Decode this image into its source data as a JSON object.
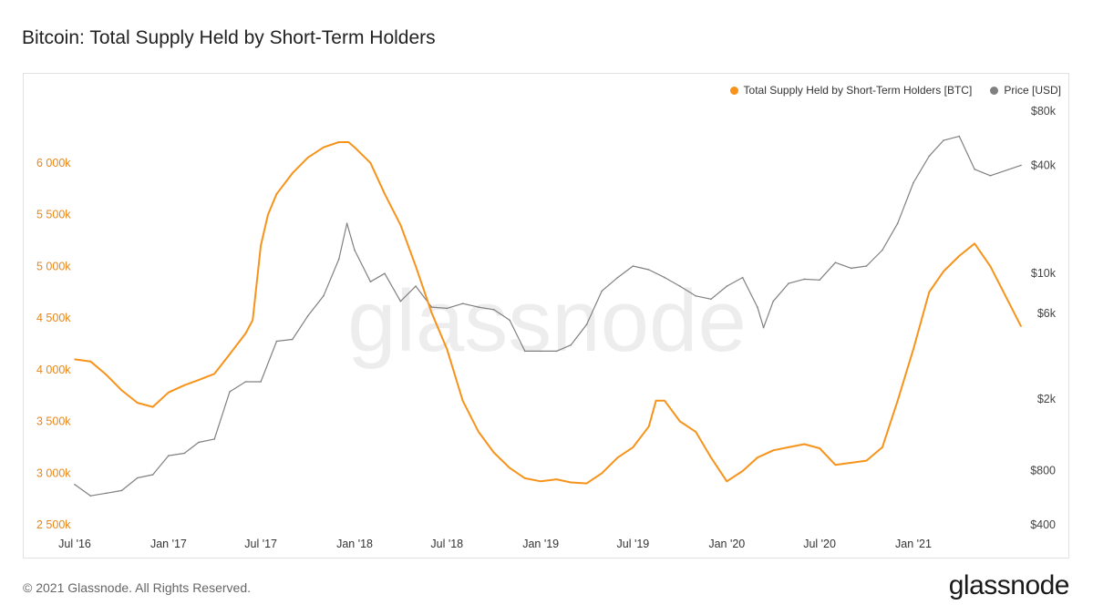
{
  "title": "Bitcoin: Total Supply Held by Short-Term Holders",
  "footer": "© 2021 Glassnode. All Rights Reserved.",
  "brand": "glassnode",
  "watermark": "glassnode",
  "colors": {
    "supply": "#f7931a",
    "price": "#808080",
    "axis_left": "#e8861a",
    "axis_right": "#444444"
  },
  "legend": [
    {
      "label": "Total Supply Held by Short-Term Holders [BTC]",
      "color": "#f7931a"
    },
    {
      "label": "Price [USD]",
      "color": "#808080"
    }
  ],
  "chart_data": {
    "type": "line",
    "title": "Bitcoin: Total Supply Held by Short-Term Holders",
    "xlim": [
      "2016-07-01",
      "2021-07-31"
    ],
    "x_ticks": [
      "Jul '16",
      "Jan '17",
      "Jul '17",
      "Jan '18",
      "Jul '18",
      "Jan '19",
      "Jul '19",
      "Jan '20",
      "Jul '20",
      "Jan '21"
    ],
    "y_left": {
      "ylim": [
        2500000,
        6500000
      ],
      "ticks": [
        2500000,
        3000000,
        3500000,
        4000000,
        4500000,
        5000000,
        5500000,
        6000000
      ],
      "tick_labels": [
        "2 500k",
        "3 000k",
        "3 500k",
        "4 000k",
        "4 500k",
        "5 000k",
        "5 500k",
        "6 000k"
      ]
    },
    "y_right": {
      "scale": "log",
      "ylim": [
        400,
        80000
      ],
      "ticks": [
        400,
        800,
        2000,
        6000,
        10000,
        40000,
        80000
      ],
      "tick_labels": [
        "$400",
        "$800",
        "$2k",
        "$6k",
        "$10k",
        "$40k",
        "$80k"
      ]
    },
    "grid": false,
    "legend_position": "top-right",
    "series": [
      {
        "name": "Total Supply Held by Short-Term Holders [BTC]",
        "axis": "left",
        "x": [
          "2016-07-01",
          "2016-08-01",
          "2016-09-01",
          "2016-10-01",
          "2016-11-01",
          "2016-12-01",
          "2017-01-01",
          "2017-02-01",
          "2017-03-01",
          "2017-04-01",
          "2017-05-01",
          "2017-06-01",
          "2017-06-15",
          "2017-07-01",
          "2017-07-15",
          "2017-08-01",
          "2017-09-01",
          "2017-10-01",
          "2017-11-01",
          "2017-12-01",
          "2017-12-20",
          "2018-01-01",
          "2018-02-01",
          "2018-03-01",
          "2018-04-01",
          "2018-05-01",
          "2018-06-01",
          "2018-07-01",
          "2018-08-01",
          "2018-09-01",
          "2018-10-01",
          "2018-11-01",
          "2018-12-01",
          "2019-01-01",
          "2019-02-01",
          "2019-03-01",
          "2019-04-01",
          "2019-05-01",
          "2019-06-01",
          "2019-07-01",
          "2019-08-01",
          "2019-08-15",
          "2019-09-01",
          "2019-10-01",
          "2019-11-01",
          "2019-12-01",
          "2020-01-01",
          "2020-02-01",
          "2020-03-01",
          "2020-04-01",
          "2020-05-01",
          "2020-06-01",
          "2020-07-01",
          "2020-08-01",
          "2020-09-01",
          "2020-10-01",
          "2020-11-01",
          "2020-12-01",
          "2021-01-01",
          "2021-02-01",
          "2021-03-01",
          "2021-04-01",
          "2021-05-01",
          "2021-06-01",
          "2021-07-31"
        ],
        "values": [
          4100000,
          4080000,
          3950000,
          3800000,
          3680000,
          3640000,
          3780000,
          3850000,
          3900000,
          3960000,
          4150000,
          4350000,
          4480000,
          5200000,
          5500000,
          5700000,
          5900000,
          6050000,
          6150000,
          6200000,
          6200000,
          6150000,
          6000000,
          5700000,
          5400000,
          5000000,
          4550000,
          4200000,
          3700000,
          3400000,
          3200000,
          3050000,
          2950000,
          2920000,
          2940000,
          2910000,
          2900000,
          3000000,
          3150000,
          3250000,
          3450000,
          3700000,
          3700000,
          3500000,
          3400000,
          3150000,
          2920000,
          3020000,
          3150000,
          3220000,
          3250000,
          3280000,
          3240000,
          3080000,
          3100000,
          3120000,
          3250000,
          3700000,
          4200000,
          4750000,
          4950000,
          5100000,
          5220000,
          5000000,
          4420000
        ]
      },
      {
        "name": "Price [USD]",
        "axis": "right",
        "x": [
          "2016-07-01",
          "2016-08-01",
          "2016-09-01",
          "2016-10-01",
          "2016-11-01",
          "2016-12-01",
          "2017-01-01",
          "2017-02-01",
          "2017-03-01",
          "2017-04-01",
          "2017-05-01",
          "2017-06-01",
          "2017-07-01",
          "2017-08-01",
          "2017-09-01",
          "2017-10-01",
          "2017-11-01",
          "2017-12-01",
          "2017-12-17",
          "2018-01-01",
          "2018-02-01",
          "2018-03-01",
          "2018-04-01",
          "2018-05-01",
          "2018-06-01",
          "2018-07-01",
          "2018-08-01",
          "2018-09-01",
          "2018-10-01",
          "2018-11-01",
          "2018-12-01",
          "2019-01-01",
          "2019-02-01",
          "2019-03-01",
          "2019-04-01",
          "2019-05-01",
          "2019-06-01",
          "2019-07-01",
          "2019-08-01",
          "2019-09-01",
          "2019-10-01",
          "2019-11-01",
          "2019-12-01",
          "2020-01-01",
          "2020-02-01",
          "2020-03-01",
          "2020-03-13",
          "2020-04-01",
          "2020-05-01",
          "2020-06-01",
          "2020-07-01",
          "2020-08-01",
          "2020-09-01",
          "2020-10-01",
          "2020-11-01",
          "2020-12-01",
          "2021-01-01",
          "2021-02-01",
          "2021-03-01",
          "2021-04-01",
          "2021-05-01",
          "2021-06-01",
          "2021-07-31"
        ],
        "values": [
          670,
          580,
          600,
          620,
          730,
          760,
          970,
          1000,
          1150,
          1200,
          2200,
          2500,
          2500,
          4200,
          4300,
          5800,
          7500,
          12000,
          19000,
          13500,
          9000,
          10000,
          7000,
          8500,
          6500,
          6400,
          6800,
          6500,
          6300,
          5500,
          3700,
          3700,
          3700,
          4000,
          5200,
          8000,
          9500,
          11000,
          10500,
          9500,
          8500,
          7500,
          7200,
          8500,
          9500,
          6500,
          5000,
          7000,
          8800,
          9300,
          9200,
          11500,
          10700,
          11000,
          13500,
          19000,
          32000,
          45000,
          55000,
          58000,
          38000,
          35000,
          40000
        ]
      }
    ]
  }
}
